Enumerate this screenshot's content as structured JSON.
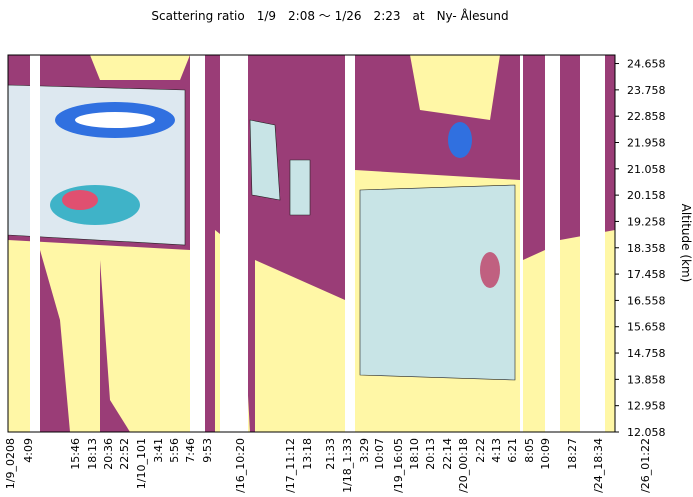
{
  "chart_data": {
    "type": "contour",
    "title": "Scattering ratio　1/9　2:08 〜 1/26　2:23　at　Ny- Ålesund",
    "y_label": "Altitude (km)",
    "categories": [
      "1/9_0208",
      "4:09",
      "15:46",
      "18:13",
      "20:36",
      "22:52",
      "1/10_101",
      "3:41",
      "5:56",
      "7:46",
      "9:53",
      "/16_10:20",
      "/17_11:12",
      "13:18",
      "21:33",
      "1/18_1:33",
      "3:29",
      "10:07",
      "/19_16:05",
      "18:10",
      "20:13",
      "22:14",
      "/20_00:18",
      "2:22",
      "4:13",
      "6:21",
      "8:05",
      "10:09",
      "18:27",
      "/24_18:34",
      "/26_01:22"
    ],
    "ylim": [
      12.058,
      24.95
    ],
    "yticks": [
      12.058,
      12.958,
      13.858,
      14.758,
      15.658,
      16.558,
      17.458,
      18.358,
      19.258,
      20.158,
      21.058,
      21.958,
      22.858,
      23.758,
      24.658
    ]
  }
}
